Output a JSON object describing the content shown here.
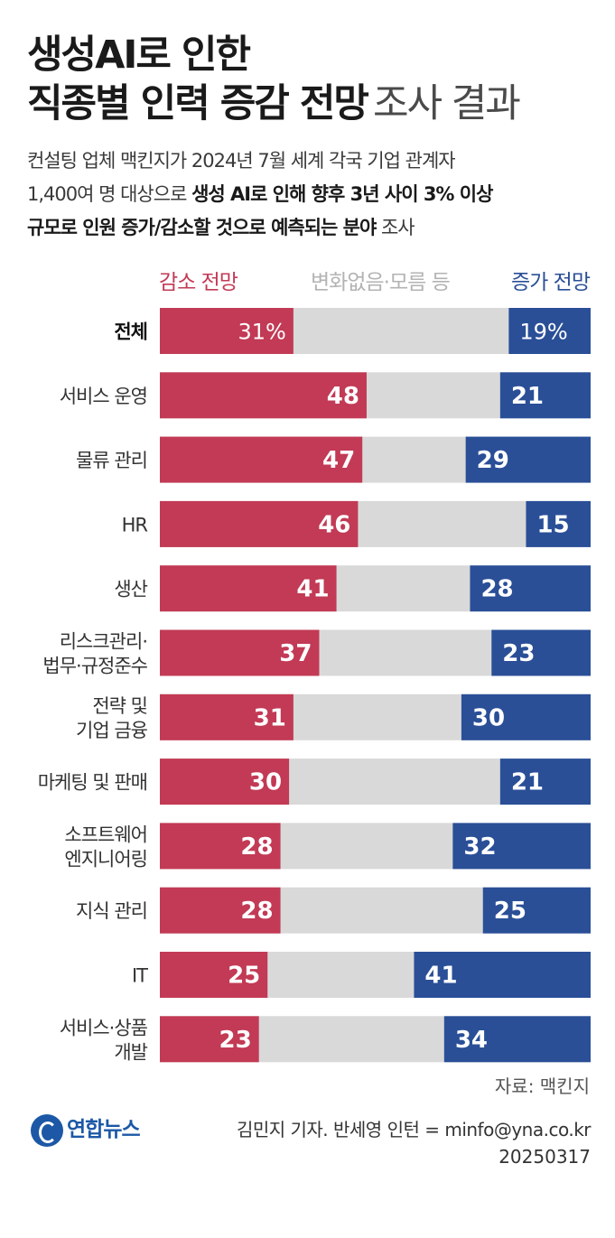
{
  "header": {
    "title_line1": "생성AI로 인한",
    "title_line2": "직종별 인력 증감 전망",
    "title_suffix": "조사 결과",
    "desc_line1": "컨설팅 업체 맥킨지가 2024년 7월 세계 각국 기업 관계자",
    "desc_line2_normal": "1,400여 명 대상으로 ",
    "desc_line2_bold": "생성 AI로 인해 향후 3년 사이 3% 이상",
    "desc_line3_bold": "규모로 인원 증가/감소할 것으로 예측되는 분야",
    "desc_line3_normal": " 조사"
  },
  "legend": {
    "decrease": "감소 전망",
    "neutral": "변화없음·모름 등",
    "increase": "증가 전망"
  },
  "colors": {
    "decrease": "#c23a55",
    "neutral": "#d9d9d9",
    "increase": "#2a4f97",
    "total_label": "#111111",
    "category_label": "#333333"
  },
  "chart_data": {
    "type": "bar",
    "orientation": "horizontal-stacked",
    "unit": "%",
    "xlim": [
      0,
      100
    ],
    "categories": [
      [
        "전체"
      ],
      [
        "서비스 운영"
      ],
      [
        "물류 관리"
      ],
      [
        "HR"
      ],
      [
        "생산"
      ],
      [
        "리스크관리·",
        "법무·규정준수"
      ],
      [
        "전략 및",
        "기업 금융"
      ],
      [
        "마케팅 및 판매"
      ],
      [
        "소프트웨어",
        "엔지니어링"
      ],
      [
        "지식 관리"
      ],
      [
        "IT"
      ],
      [
        "서비스·상품",
        "개발"
      ]
    ],
    "series": [
      {
        "name": "감소 전망",
        "values": [
          31,
          48,
          47,
          46,
          41,
          37,
          31,
          30,
          28,
          28,
          25,
          23
        ],
        "labels": [
          "31%",
          "48",
          "47",
          "46",
          "41",
          "37",
          "31",
          "30",
          "28",
          "28",
          "25",
          "23"
        ]
      },
      {
        "name": "증가 전망",
        "values": [
          19,
          21,
          29,
          15,
          28,
          23,
          30,
          21,
          32,
          25,
          41,
          34
        ],
        "labels": [
          "19%",
          "21",
          "29",
          "15",
          "28",
          "23",
          "30",
          "21",
          "32",
          "25",
          "41",
          "34"
        ]
      }
    ]
  },
  "footer": {
    "source": "자료: 맥킨지",
    "logo": "연합뉴스",
    "credit": "김민지 기자. 반세영 인턴 = minfo@yna.co.kr",
    "date": "20250317"
  }
}
